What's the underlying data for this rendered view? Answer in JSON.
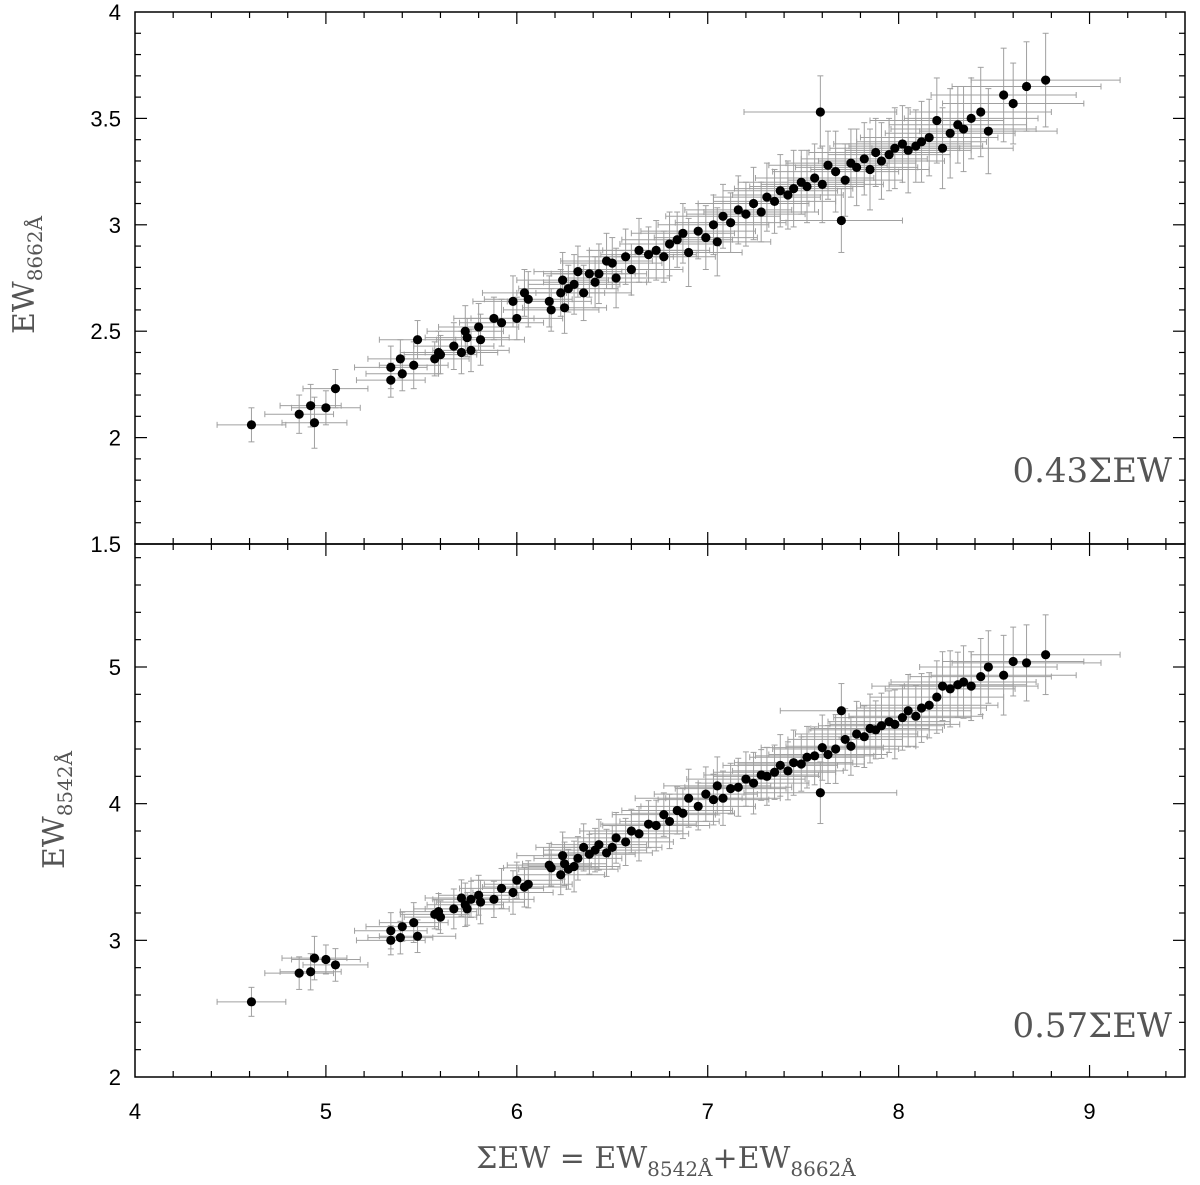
{
  "chart_data": {
    "type": "scatter",
    "x_axis": {
      "label_main": "ΣEW  =  EW",
      "label_sub1": "8542Å",
      "label_plus": "+EW",
      "label_sub2": "8662Å",
      "range": [
        4,
        9.5
      ],
      "major_ticks": [
        4,
        5,
        6,
        7,
        8,
        9
      ],
      "tick_labels": [
        "4",
        "5",
        "6",
        "7",
        "8",
        "9"
      ]
    },
    "panels": [
      {
        "id": "top",
        "y_label_main": "EW",
        "y_label_sub": "8662Å",
        "y_range": [
          1.5,
          4
        ],
        "y_major_ticks": [
          1.5,
          2,
          2.5,
          3,
          3.5,
          4
        ],
        "y_tick_labels": [
          "1.5",
          "2",
          "2.5",
          "3",
          "3.5",
          "4"
        ],
        "annotation": "0.43ΣEW",
        "slope": 0.43
      },
      {
        "id": "bottom",
        "y_label_main": "EW",
        "y_label_sub": "8542Å",
        "y_range": [
          2,
          5.9
        ],
        "y_major_ticks": [
          2,
          3,
          4,
          5
        ],
        "y_tick_labels": [
          "2",
          "3",
          "4",
          "5"
        ],
        "annotation": "0.57ΣEW",
        "slope": 0.57
      }
    ],
    "grid": false,
    "colors": {
      "points": "#000000",
      "errorbars": "#a0a0a0",
      "axes": "#000000"
    },
    "series": [
      {
        "x": [
          4.61,
          4.86,
          4.92,
          4.94,
          5.0,
          5.05,
          5.34,
          5.34,
          5.39,
          5.4,
          5.46,
          5.48,
          5.57,
          5.59,
          5.6,
          5.67,
          5.71,
          5.73,
          5.74,
          5.76,
          5.8,
          5.81,
          5.88,
          5.92,
          5.98,
          6.0,
          6.04,
          6.06,
          6.17,
          6.18,
          6.23,
          6.24,
          6.25,
          6.27,
          6.3,
          6.32,
          6.35,
          6.38,
          6.41,
          6.43,
          6.47,
          6.5,
          6.52,
          6.57,
          6.6,
          6.64,
          6.69,
          6.73,
          6.77,
          6.8,
          6.84,
          6.87,
          6.9,
          6.95,
          6.99,
          7.03,
          7.05,
          7.08,
          7.12,
          7.16,
          7.2,
          7.24,
          7.28,
          7.31,
          7.35,
          7.38,
          7.42,
          7.45,
          7.49,
          7.52,
          7.56,
          7.59,
          7.6,
          7.63,
          7.67,
          7.7,
          7.72,
          7.75,
          7.78,
          7.82,
          7.85,
          7.88,
          7.91,
          7.95,
          7.98,
          8.02,
          8.05,
          8.09,
          8.12,
          8.16,
          8.2,
          8.23,
          8.27,
          8.31,
          8.34,
          8.38,
          8.43,
          8.47,
          8.55,
          8.6,
          8.67,
          8.77
        ],
        "y_top": [
          2.06,
          2.11,
          2.15,
          2.07,
          2.14,
          2.23,
          2.27,
          2.33,
          2.37,
          2.3,
          2.34,
          2.46,
          2.37,
          2.4,
          2.39,
          2.43,
          2.4,
          2.5,
          2.47,
          2.41,
          2.52,
          2.46,
          2.56,
          2.54,
          2.64,
          2.56,
          2.68,
          2.65,
          2.64,
          2.6,
          2.68,
          2.74,
          2.61,
          2.7,
          2.72,
          2.78,
          2.68,
          2.77,
          2.73,
          2.77,
          2.83,
          2.82,
          2.75,
          2.85,
          2.79,
          2.88,
          2.86,
          2.88,
          2.85,
          2.91,
          2.93,
          2.96,
          2.87,
          2.97,
          2.94,
          3.0,
          2.92,
          3.04,
          3.01,
          3.07,
          3.05,
          3.1,
          3.06,
          3.13,
          3.11,
          3.16,
          3.14,
          3.17,
          3.2,
          3.18,
          3.22,
          3.53,
          3.19,
          3.28,
          3.25,
          3.02,
          3.21,
          3.29,
          3.27,
          3.31,
          3.26,
          3.34,
          3.3,
          3.33,
          3.36,
          3.38,
          3.35,
          3.37,
          3.39,
          3.41,
          3.49,
          3.36,
          3.43,
          3.47,
          3.45,
          3.5,
          3.53,
          3.44,
          3.61,
          3.57,
          3.65,
          3.68
        ],
        "y_bottom": [
          2.55,
          2.76,
          2.77,
          2.87,
          2.86,
          2.82,
          3.0,
          3.07,
          3.02,
          3.1,
          3.13,
          3.03,
          3.19,
          3.21,
          3.17,
          3.23,
          3.31,
          3.26,
          3.23,
          3.3,
          3.33,
          3.28,
          3.3,
          3.38,
          3.35,
          3.44,
          3.39,
          3.41,
          3.55,
          3.53,
          3.48,
          3.62,
          3.56,
          3.52,
          3.54,
          3.6,
          3.68,
          3.63,
          3.66,
          3.7,
          3.64,
          3.68,
          3.75,
          3.72,
          3.8,
          3.78,
          3.85,
          3.84,
          3.92,
          3.87,
          3.95,
          3.93,
          4.04,
          3.98,
          4.07,
          4.03,
          4.13,
          4.04,
          4.11,
          4.12,
          4.18,
          4.15,
          4.21,
          4.2,
          4.23,
          4.28,
          4.24,
          4.3,
          4.29,
          4.34,
          4.35,
          4.08,
          4.41,
          4.36,
          4.4,
          4.68,
          4.47,
          4.42,
          4.51,
          4.49,
          4.55,
          4.54,
          4.57,
          4.6,
          4.58,
          4.63,
          4.68,
          4.64,
          4.7,
          4.72,
          4.78,
          4.86,
          4.84,
          4.87,
          4.89,
          4.86,
          4.93,
          5.0,
          4.94,
          5.04,
          5.03,
          5.09
        ],
        "x_err": [
          0.18,
          0.18,
          0.16,
          0.17,
          0.18,
          0.17,
          0.18,
          0.19,
          0.17,
          0.19,
          0.18,
          0.2,
          0.18,
          0.2,
          0.19,
          0.21,
          0.19,
          0.2,
          0.22,
          0.2,
          0.21,
          0.23,
          0.21,
          0.22,
          0.21,
          0.24,
          0.22,
          0.23,
          0.22,
          0.25,
          0.23,
          0.24,
          0.22,
          0.26,
          0.24,
          0.23,
          0.25,
          0.24,
          0.27,
          0.25,
          0.24,
          0.26,
          0.28,
          0.25,
          0.27,
          0.26,
          0.25,
          0.28,
          0.27,
          0.26,
          0.29,
          0.27,
          0.28,
          0.3,
          0.27,
          0.29,
          0.28,
          0.3,
          0.29,
          0.28,
          0.31,
          0.29,
          0.3,
          0.28,
          0.32,
          0.3,
          0.29,
          0.31,
          0.33,
          0.3,
          0.31,
          0.4,
          0.32,
          0.31,
          0.33,
          0.32,
          0.3,
          0.34,
          0.32,
          0.33,
          0.31,
          0.35,
          0.33,
          0.32,
          0.34,
          0.36,
          0.33,
          0.35,
          0.34,
          0.36,
          0.35,
          0.37,
          0.34,
          0.36,
          0.38,
          0.35,
          0.37,
          0.36,
          0.38,
          0.37,
          0.39,
          0.39
        ],
        "y_err": [
          0.08,
          0.09,
          0.1,
          0.12,
          0.08,
          0.09,
          0.08,
          0.1,
          0.09,
          0.08,
          0.11,
          0.09,
          0.08,
          0.1,
          0.09,
          0.11,
          0.1,
          0.12,
          0.09,
          0.1,
          0.11,
          0.12,
          0.1,
          0.11,
          0.12,
          0.1,
          0.11,
          0.13,
          0.12,
          0.1,
          0.11,
          0.13,
          0.12,
          0.11,
          0.14,
          0.12,
          0.13,
          0.11,
          0.12,
          0.14,
          0.13,
          0.12,
          0.14,
          0.13,
          0.12,
          0.15,
          0.13,
          0.14,
          0.12,
          0.15,
          0.13,
          0.14,
          0.16,
          0.13,
          0.15,
          0.14,
          0.16,
          0.15,
          0.14,
          0.16,
          0.15,
          0.17,
          0.14,
          0.16,
          0.15,
          0.17,
          0.16,
          0.18,
          0.15,
          0.17,
          0.16,
          0.17,
          0.18,
          0.16,
          0.19,
          0.15,
          0.17,
          0.16,
          0.18,
          0.17,
          0.19,
          0.16,
          0.18,
          0.17,
          0.19,
          0.18,
          0.2,
          0.17,
          0.19,
          0.18,
          0.2,
          0.19,
          0.21,
          0.18,
          0.2,
          0.19,
          0.21,
          0.2,
          0.22,
          0.19,
          0.21,
          0.22
        ]
      }
    ]
  }
}
